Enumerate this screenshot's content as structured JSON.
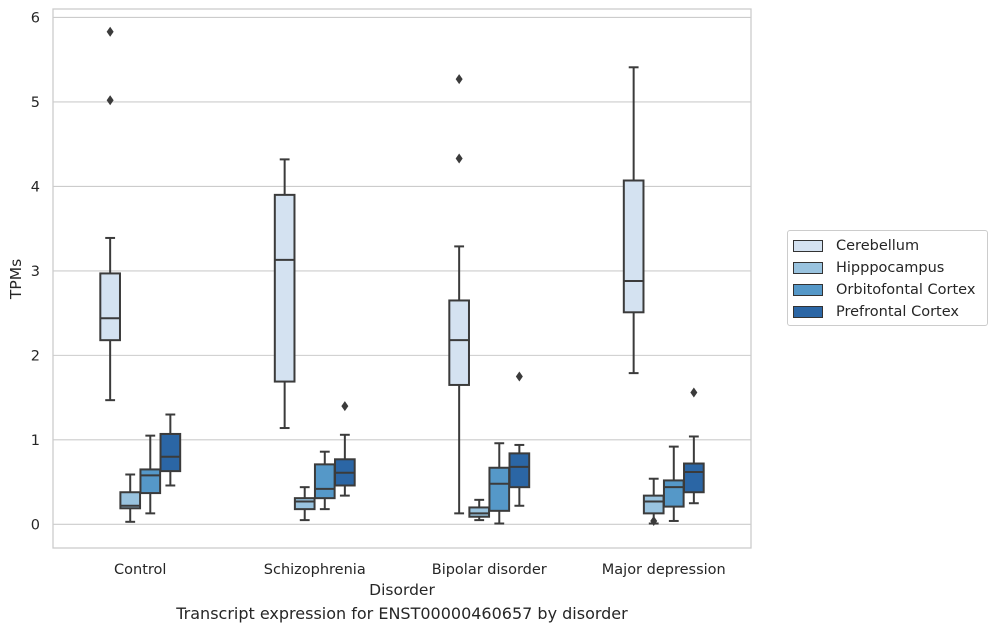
{
  "chart_data": {
    "type": "box",
    "caption": "Transcript expression for ENST00000460657 by disorder",
    "xlabel": "Disorder",
    "ylabel": "TPMs",
    "ylim": [
      -0.28,
      6.1
    ],
    "yticks": [
      "0",
      "1",
      "2",
      "3",
      "4",
      "5",
      "6"
    ],
    "grid": true,
    "legend_position": "right",
    "categories": [
      "Control",
      "Schizophrenia",
      "Bipolar disorder",
      "Major depression"
    ],
    "series": [
      {
        "name": "Cerebellum",
        "color": "#d4e2f1",
        "boxes": [
          {
            "whislo": 1.47,
            "q1": 2.18,
            "med": 2.44,
            "q3": 2.97,
            "whishi": 3.39,
            "fliers": [
              5.02,
              5.83
            ]
          },
          {
            "whislo": 1.14,
            "q1": 1.69,
            "med": 3.13,
            "q3": 3.9,
            "whishi": 4.32,
            "fliers": []
          },
          {
            "whislo": 0.13,
            "q1": 1.65,
            "med": 2.18,
            "q3": 2.65,
            "whishi": 3.29,
            "fliers": [
              4.33,
              5.27
            ]
          },
          {
            "whislo": 1.79,
            "q1": 2.51,
            "med": 2.88,
            "q3": 4.07,
            "whishi": 5.41,
            "fliers": []
          }
        ]
      },
      {
        "name": "Hipppocampus",
        "color": "#99c3df",
        "boxes": [
          {
            "whislo": 0.03,
            "q1": 0.19,
            "med": 0.22,
            "q3": 0.38,
            "whishi": 0.59,
            "fliers": []
          },
          {
            "whislo": 0.05,
            "q1": 0.18,
            "med": 0.27,
            "q3": 0.31,
            "whishi": 0.44,
            "fliers": []
          },
          {
            "whislo": 0.05,
            "q1": 0.09,
            "med": 0.13,
            "q3": 0.2,
            "whishi": 0.29,
            "fliers": []
          },
          {
            "whislo": 0.01,
            "q1": 0.13,
            "med": 0.27,
            "q3": 0.34,
            "whishi": 0.54,
            "fliers": [
              0.04
            ]
          }
        ]
      },
      {
        "name": "Orbitofontal Cortex",
        "color": "#5598c8",
        "boxes": [
          {
            "whislo": 0.13,
            "q1": 0.37,
            "med": 0.58,
            "q3": 0.65,
            "whishi": 1.05,
            "fliers": []
          },
          {
            "whislo": 0.18,
            "q1": 0.31,
            "med": 0.42,
            "q3": 0.71,
            "whishi": 0.86,
            "fliers": []
          },
          {
            "whislo": 0.01,
            "q1": 0.16,
            "med": 0.48,
            "q3": 0.67,
            "whishi": 0.96,
            "fliers": []
          },
          {
            "whislo": 0.04,
            "q1": 0.21,
            "med": 0.44,
            "q3": 0.52,
            "whishi": 0.92,
            "fliers": []
          }
        ]
      },
      {
        "name": "Prefrontal Cortex",
        "color": "#2b66a5",
        "boxes": [
          {
            "whislo": 0.46,
            "q1": 0.63,
            "med": 0.8,
            "q3": 1.07,
            "whishi": 1.3,
            "fliers": []
          },
          {
            "whislo": 0.34,
            "q1": 0.46,
            "med": 0.61,
            "q3": 0.77,
            "whishi": 1.06,
            "fliers": [
              1.4
            ]
          },
          {
            "whislo": 0.22,
            "q1": 0.44,
            "med": 0.68,
            "q3": 0.84,
            "whishi": 0.94,
            "fliers": [
              1.75
            ]
          },
          {
            "whislo": 0.25,
            "q1": 0.38,
            "med": 0.62,
            "q3": 0.72,
            "whishi": 1.04,
            "fliers": [
              1.56
            ]
          }
        ]
      }
    ]
  }
}
